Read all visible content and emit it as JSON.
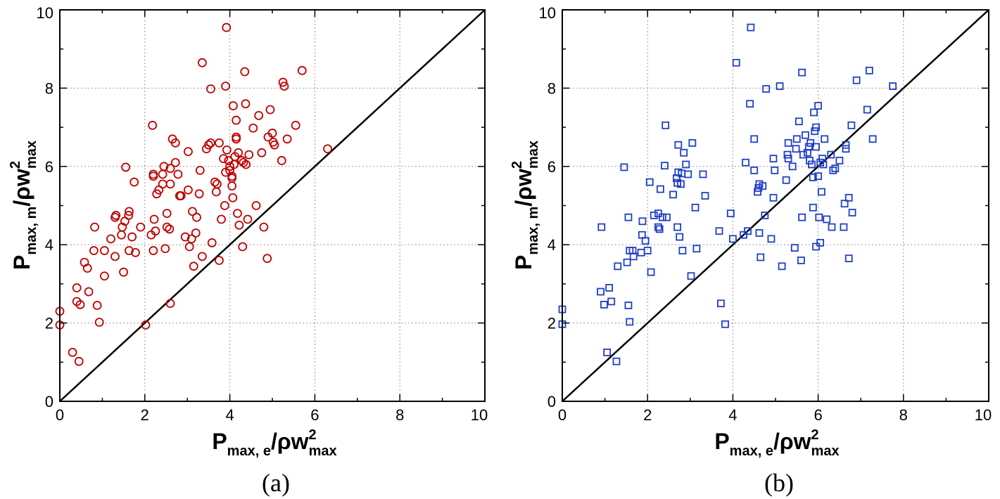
{
  "chart_data": [
    {
      "type": "scatter",
      "panel_label": "(a)",
      "marker": "circle",
      "color": "#c00000",
      "xlabel": {
        "main": "P",
        "sub": "max, e",
        "mid": "/ρw",
        "sup": "2",
        "sub2": "max"
      },
      "ylabel": {
        "main": "P",
        "sub": "max, m",
        "mid": "/ρw",
        "sup": "2",
        "sub2": "max"
      },
      "xlim": [
        0,
        10
      ],
      "ylim": [
        0,
        10
      ],
      "xticks": [
        0,
        2,
        4,
        6,
        8,
        10
      ],
      "yticks": [
        0,
        2,
        4,
        6,
        8,
        10
      ],
      "tick_labels": [
        "0",
        "2",
        "4",
        "6",
        "8",
        "10"
      ],
      "grid": true,
      "reference_line": "y = x",
      "points": [
        [
          0.0,
          2.3
        ],
        [
          0.0,
          1.95
        ],
        [
          0.3,
          1.25
        ],
        [
          0.45,
          1.02
        ],
        [
          0.4,
          2.9
        ],
        [
          0.4,
          2.55
        ],
        [
          0.48,
          2.47
        ],
        [
          0.58,
          3.55
        ],
        [
          0.65,
          3.4
        ],
        [
          0.68,
          2.8
        ],
        [
          0.8,
          3.85
        ],
        [
          0.82,
          4.45
        ],
        [
          0.88,
          2.45
        ],
        [
          0.93,
          2.02
        ],
        [
          1.05,
          3.2
        ],
        [
          1.05,
          3.85
        ],
        [
          1.2,
          4.15
        ],
        [
          1.3,
          3.7
        ],
        [
          1.3,
          4.7
        ],
        [
          1.32,
          4.75
        ],
        [
          1.45,
          4.25
        ],
        [
          1.47,
          4.45
        ],
        [
          1.5,
          3.3
        ],
        [
          1.53,
          4.6
        ],
        [
          1.55,
          5.98
        ],
        [
          1.62,
          4.75
        ],
        [
          1.63,
          4.85
        ],
        [
          1.63,
          3.85
        ],
        [
          1.7,
          4.2
        ],
        [
          1.75,
          5.6
        ],
        [
          1.78,
          3.8
        ],
        [
          1.9,
          4.45
        ],
        [
          2.02,
          1.95
        ],
        [
          2.15,
          4.25
        ],
        [
          2.18,
          7.05
        ],
        [
          2.2,
          5.8
        ],
        [
          2.2,
          5.75
        ],
        [
          2.2,
          3.85
        ],
        [
          2.22,
          4.65
        ],
        [
          2.25,
          4.35
        ],
        [
          2.28,
          5.3
        ],
        [
          2.33,
          5.4
        ],
        [
          2.42,
          5.55
        ],
        [
          2.42,
          5.8
        ],
        [
          2.45,
          6.0
        ],
        [
          2.48,
          3.9
        ],
        [
          2.52,
          4.8
        ],
        [
          2.52,
          4.45
        ],
        [
          2.58,
          4.4
        ],
        [
          2.6,
          5.95
        ],
        [
          2.6,
          5.55
        ],
        [
          2.6,
          2.5
        ],
        [
          2.65,
          6.7
        ],
        [
          2.72,
          6.1
        ],
        [
          2.72,
          6.6
        ],
        [
          2.78,
          5.8
        ],
        [
          2.82,
          5.25
        ],
        [
          2.85,
          5.25
        ],
        [
          2.95,
          4.2
        ],
        [
          3.02,
          5.4
        ],
        [
          3.02,
          6.38
        ],
        [
          3.05,
          3.95
        ],
        [
          3.1,
          4.15
        ],
        [
          3.12,
          4.85
        ],
        [
          3.15,
          3.45
        ],
        [
          3.2,
          4.3
        ],
        [
          3.22,
          4.7
        ],
        [
          3.28,
          5.3
        ],
        [
          3.3,
          5.9
        ],
        [
          3.35,
          8.65
        ],
        [
          3.35,
          3.7
        ],
        [
          3.45,
          6.45
        ],
        [
          3.5,
          6.55
        ],
        [
          3.55,
          7.98
        ],
        [
          3.55,
          6.6
        ],
        [
          3.58,
          4.05
        ],
        [
          3.65,
          5.6
        ],
        [
          3.68,
          5.35
        ],
        [
          3.7,
          5.55
        ],
        [
          3.75,
          3.6
        ],
        [
          3.75,
          6.6
        ],
        [
          3.8,
          4.65
        ],
        [
          3.85,
          6.2
        ],
        [
          3.88,
          5.0
        ],
        [
          3.9,
          8.05
        ],
        [
          3.9,
          5.85
        ],
        [
          3.92,
          9.55
        ],
        [
          3.93,
          6.42
        ],
        [
          3.97,
          6.15
        ],
        [
          4.0,
          5.9
        ],
        [
          4.0,
          6.0
        ],
        [
          4.05,
          5.75
        ],
        [
          4.05,
          5.7
        ],
        [
          4.05,
          5.5
        ],
        [
          4.07,
          5.2
        ],
        [
          4.08,
          7.55
        ],
        [
          4.1,
          6.05
        ],
        [
          4.12,
          6.25
        ],
        [
          4.15,
          6.75
        ],
        [
          4.15,
          7.18
        ],
        [
          4.15,
          6.7
        ],
        [
          4.18,
          4.8
        ],
        [
          4.2,
          6.35
        ],
        [
          4.22,
          4.5
        ],
        [
          4.28,
          6.15
        ],
        [
          4.3,
          3.95
        ],
        [
          4.32,
          6.1
        ],
        [
          4.35,
          8.42
        ],
        [
          4.37,
          7.6
        ],
        [
          4.38,
          6.05
        ],
        [
          4.42,
          4.65
        ],
        [
          4.45,
          6.3
        ],
        [
          4.55,
          6.98
        ],
        [
          4.62,
          5.0
        ],
        [
          4.68,
          7.3
        ],
        [
          4.75,
          6.35
        ],
        [
          4.8,
          4.45
        ],
        [
          4.88,
          3.65
        ],
        [
          4.9,
          6.75
        ],
        [
          4.95,
          7.45
        ],
        [
          5.0,
          6.85
        ],
        [
          5.02,
          6.62
        ],
        [
          5.05,
          6.55
        ],
        [
          5.22,
          6.15
        ],
        [
          5.25,
          8.15
        ],
        [
          5.28,
          8.05
        ],
        [
          5.35,
          6.7
        ],
        [
          5.55,
          7.05
        ],
        [
          5.7,
          8.45
        ],
        [
          6.3,
          6.45
        ]
      ]
    },
    {
      "type": "scatter",
      "panel_label": "(b)",
      "marker": "square",
      "color": "#1f3fc7",
      "xlabel": {
        "main": "P",
        "sub": "max, e",
        "mid": "/ρw",
        "sup": "2",
        "sub2": "max"
      },
      "ylabel": {
        "main": "P",
        "sub": "max, m",
        "mid": "/ρw",
        "sup": "2",
        "sub2": "max"
      },
      "xlim": [
        0,
        10
      ],
      "ylim": [
        0,
        10
      ],
      "xticks": [
        0,
        2,
        4,
        6,
        8,
        10
      ],
      "yticks": [
        0,
        2,
        4,
        6,
        8,
        10
      ],
      "tick_labels": [
        "0",
        "2",
        "4",
        "6",
        "8",
        "10"
      ],
      "grid": true,
      "reference_line": "y = x",
      "points": [
        [
          0.0,
          2.35
        ],
        [
          0.0,
          1.97
        ],
        [
          0.9,
          2.8
        ],
        [
          0.92,
          4.45
        ],
        [
          0.98,
          2.47
        ],
        [
          1.05,
          1.25
        ],
        [
          1.1,
          2.9
        ],
        [
          1.15,
          2.55
        ],
        [
          1.27,
          1.02
        ],
        [
          1.3,
          3.45
        ],
        [
          1.45,
          5.98
        ],
        [
          1.52,
          3.55
        ],
        [
          1.55,
          4.7
        ],
        [
          1.55,
          2.45
        ],
        [
          1.58,
          3.85
        ],
        [
          1.58,
          2.03
        ],
        [
          1.65,
          3.85
        ],
        [
          1.67,
          3.7
        ],
        [
          1.85,
          3.8
        ],
        [
          1.87,
          4.25
        ],
        [
          1.88,
          4.6
        ],
        [
          1.95,
          4.1
        ],
        [
          2.0,
          3.85
        ],
        [
          2.05,
          5.6
        ],
        [
          2.08,
          3.3
        ],
        [
          2.15,
          4.75
        ],
        [
          2.25,
          4.45
        ],
        [
          2.25,
          4.8
        ],
        [
          2.28,
          4.4
        ],
        [
          2.3,
          5.42
        ],
        [
          2.35,
          4.7
        ],
        [
          2.4,
          6.02
        ],
        [
          2.42,
          7.05
        ],
        [
          2.45,
          4.7
        ],
        [
          2.6,
          5.28
        ],
        [
          2.68,
          5.7
        ],
        [
          2.7,
          5.58
        ],
        [
          2.7,
          4.45
        ],
        [
          2.72,
          5.85
        ],
        [
          2.72,
          6.55
        ],
        [
          2.75,
          4.2
        ],
        [
          2.78,
          5.55
        ],
        [
          2.8,
          5.82
        ],
        [
          2.82,
          3.85
        ],
        [
          2.85,
          6.35
        ],
        [
          2.9,
          6.05
        ],
        [
          2.95,
          5.8
        ],
        [
          3.02,
          3.2
        ],
        [
          3.05,
          6.6
        ],
        [
          3.12,
          4.95
        ],
        [
          3.15,
          3.9
        ],
        [
          3.3,
          5.8
        ],
        [
          3.35,
          5.25
        ],
        [
          3.68,
          4.35
        ],
        [
          3.72,
          2.5
        ],
        [
          3.82,
          1.97
        ],
        [
          3.95,
          4.8
        ],
        [
          4.0,
          4.15
        ],
        [
          4.08,
          8.65
        ],
        [
          4.25,
          4.25
        ],
        [
          4.3,
          6.1
        ],
        [
          4.35,
          4.35
        ],
        [
          4.4,
          7.6
        ],
        [
          4.42,
          9.55
        ],
        [
          4.5,
          5.9
        ],
        [
          4.5,
          6.7
        ],
        [
          4.58,
          5.35
        ],
        [
          4.6,
          5.45
        ],
        [
          4.62,
          5.55
        ],
        [
          4.62,
          4.3
        ],
        [
          4.65,
          3.68
        ],
        [
          4.7,
          5.5
        ],
        [
          4.75,
          4.75
        ],
        [
          4.78,
          7.98
        ],
        [
          4.9,
          4.15
        ],
        [
          4.95,
          5.2
        ],
        [
          4.95,
          6.2
        ],
        [
          4.98,
          5.9
        ],
        [
          5.1,
          8.05
        ],
        [
          5.15,
          3.45
        ],
        [
          5.25,
          5.65
        ],
        [
          5.28,
          6.3
        ],
        [
          5.3,
          6.6
        ],
        [
          5.3,
          6.2
        ],
        [
          5.4,
          6.0
        ],
        [
          5.45,
          3.92
        ],
        [
          5.48,
          6.45
        ],
        [
          5.5,
          6.7
        ],
        [
          5.55,
          7.15
        ],
        [
          5.6,
          3.6
        ],
        [
          5.62,
          4.7
        ],
        [
          5.62,
          8.4
        ],
        [
          5.65,
          6.3
        ],
        [
          5.7,
          6.8
        ],
        [
          5.75,
          6.35
        ],
        [
          5.78,
          6.5
        ],
        [
          5.8,
          6.15
        ],
        [
          5.82,
          6.6
        ],
        [
          5.85,
          6.05
        ],
        [
          5.88,
          4.95
        ],
        [
          5.88,
          5.72
        ],
        [
          5.9,
          7.38
        ],
        [
          5.92,
          6.9
        ],
        [
          5.95,
          7.0
        ],
        [
          5.95,
          3.95
        ],
        [
          5.95,
          6.5
        ],
        [
          6.0,
          5.75
        ],
        [
          6.0,
          7.55
        ],
        [
          6.02,
          4.7
        ],
        [
          6.05,
          6.1
        ],
        [
          6.05,
          4.05
        ],
        [
          6.08,
          5.35
        ],
        [
          6.1,
          6.2
        ],
        [
          6.12,
          6.05
        ],
        [
          6.15,
          6.7
        ],
        [
          6.2,
          4.65
        ],
        [
          6.3,
          6.3
        ],
        [
          6.32,
          4.45
        ],
        [
          6.35,
          5.9
        ],
        [
          6.4,
          5.95
        ],
        [
          6.5,
          6.15
        ],
        [
          6.6,
          4.45
        ],
        [
          6.62,
          5.05
        ],
        [
          6.65,
          6.45
        ],
        [
          6.65,
          6.55
        ],
        [
          6.72,
          5.2
        ],
        [
          6.72,
          3.65
        ],
        [
          6.78,
          7.05
        ],
        [
          6.8,
          4.82
        ],
        [
          6.9,
          8.2
        ],
        [
          7.15,
          7.45
        ],
        [
          7.2,
          8.45
        ],
        [
          7.28,
          6.7
        ],
        [
          7.75,
          8.05
        ]
      ]
    }
  ]
}
